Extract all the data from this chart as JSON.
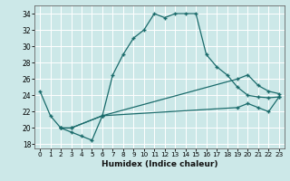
{
  "xlabel": "Humidex (Indice chaleur)",
  "bg_color": "#cce8e8",
  "grid_color": "#ffffff",
  "line_color": "#1a6b6b",
  "xlim": [
    -0.5,
    23.5
  ],
  "ylim": [
    17.5,
    35.0
  ],
  "xticks": [
    0,
    1,
    2,
    3,
    4,
    5,
    6,
    7,
    8,
    9,
    10,
    11,
    12,
    13,
    14,
    15,
    16,
    17,
    18,
    19,
    20,
    21,
    22,
    23
  ],
  "yticks": [
    18,
    20,
    22,
    24,
    26,
    28,
    30,
    32,
    34
  ],
  "curve1_x": [
    0,
    1,
    2,
    3,
    4,
    5,
    6,
    7,
    8,
    9,
    10,
    11,
    12,
    13,
    14,
    15,
    16,
    17,
    18,
    19,
    20,
    21,
    22,
    23
  ],
  "curve1_y": [
    24.5,
    21.5,
    20.0,
    19.5,
    19.0,
    18.5,
    21.5,
    26.5,
    29.0,
    31.0,
    32.0,
    34.0,
    33.5,
    34.0,
    34.0,
    34.0,
    29.0,
    27.5,
    26.5,
    25.0,
    24.0,
    23.8,
    23.7,
    23.8
  ],
  "curve2_x": [
    2,
    3,
    6,
    19,
    20,
    21,
    22,
    23
  ],
  "curve2_y": [
    20.0,
    20.0,
    21.5,
    26.0,
    26.5,
    25.2,
    24.5,
    24.2
  ],
  "curve3_x": [
    2,
    3,
    6,
    19,
    20,
    21,
    22,
    23
  ],
  "curve3_y": [
    20.0,
    20.0,
    21.5,
    22.5,
    23.0,
    22.5,
    22.0,
    23.8
  ]
}
